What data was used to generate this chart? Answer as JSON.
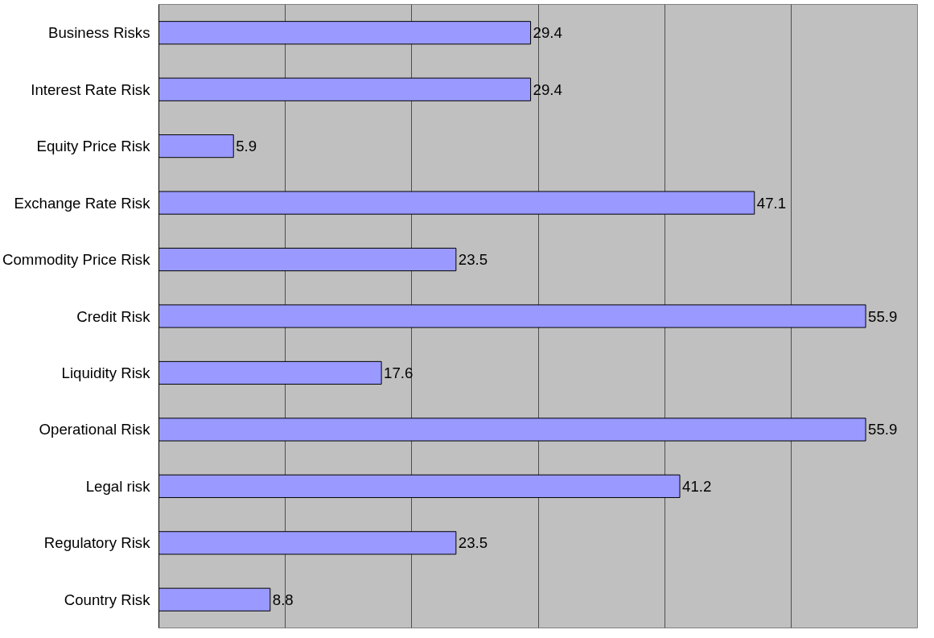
{
  "chart_data": {
    "type": "bar",
    "orientation": "horizontal",
    "categories": [
      "Business Risks",
      "Interest Rate Risk",
      "Equity Price Risk",
      "Exchange Rate Risk",
      "Commodity Price Risk",
      "Credit Risk",
      "Liquidity Risk",
      "Operational Risk",
      "Legal risk",
      "Regulatory Risk",
      "Country Risk"
    ],
    "values": [
      29.4,
      29.4,
      5.9,
      47.1,
      23.5,
      55.9,
      17.6,
      55.9,
      41.2,
      23.5,
      8.8
    ],
    "color": "#9999ff",
    "xlim": [
      0,
      60
    ],
    "xticks": [
      {
        "value": 0,
        "label": null
      },
      {
        "value": 10,
        "label": null
      },
      {
        "value": 20,
        "label": null
      },
      {
        "value": 30,
        "label": null
      },
      {
        "value": 40,
        "label": null
      },
      {
        "value": 50,
        "label": null
      },
      {
        "value": 60,
        "label": null
      }
    ],
    "tick_labels": "y",
    "grid": "x",
    "data_labels": true
  }
}
